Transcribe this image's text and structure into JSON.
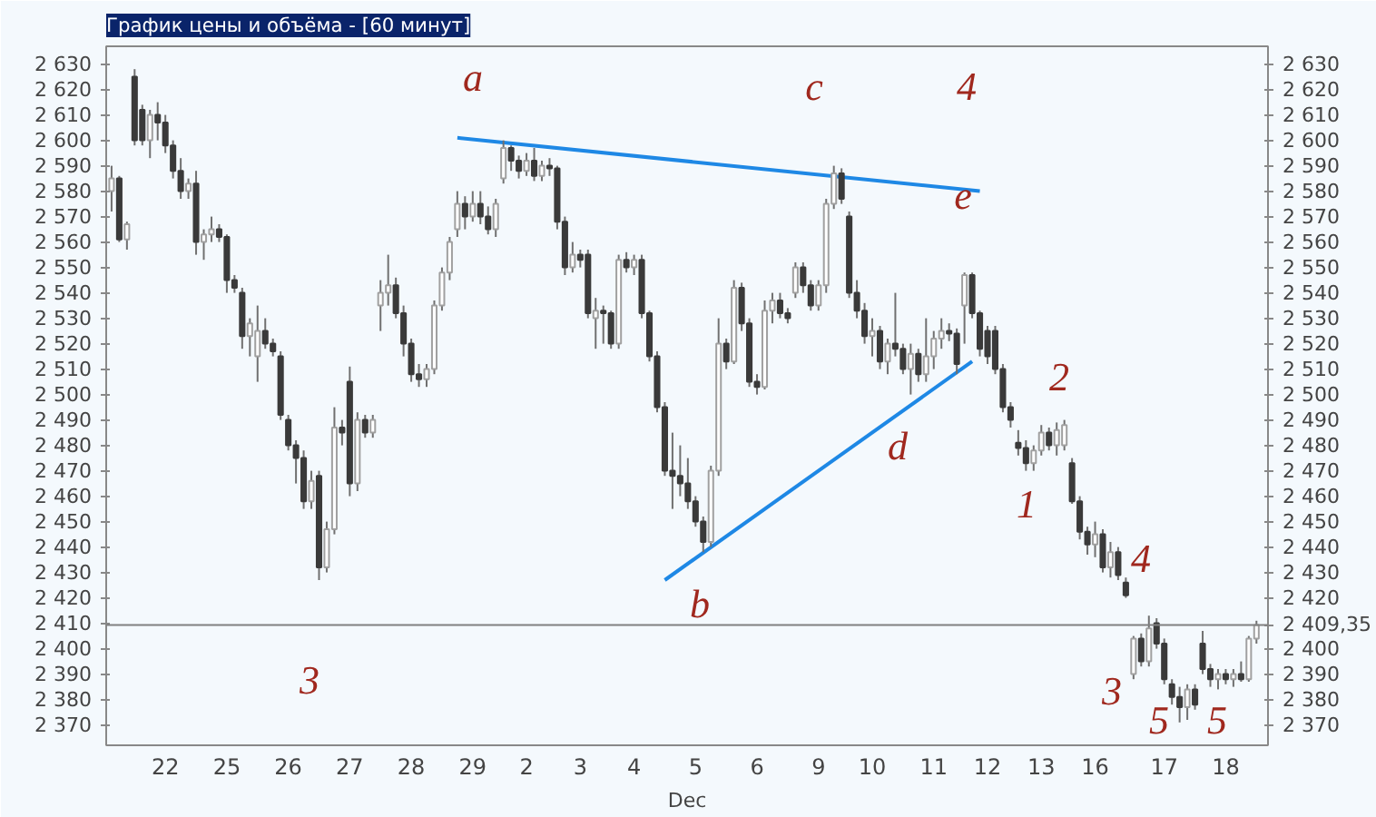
{
  "chart_data": {
    "type": "candlestick",
    "title": "График цены и объёма - [60 минут]",
    "xlabel": "Dec",
    "categories": [
      null,
      null,
      null,
      null,
      null,
      null,
      null,
      "22",
      null,
      null,
      null,
      null,
      null,
      null,
      null,
      "25",
      null,
      null,
      null,
      null,
      null,
      null,
      null,
      "26",
      null,
      null,
      null,
      null,
      null,
      null,
      null,
      "27",
      null,
      null,
      null,
      null,
      null,
      null,
      null,
      "28",
      null,
      null,
      null,
      null,
      null,
      null,
      null,
      "29",
      null,
      null,
      null,
      null,
      null,
      null,
      "2",
      null,
      null,
      null,
      null,
      null,
      null,
      "3",
      null,
      null,
      null,
      null,
      null,
      null,
      "4",
      null,
      null,
      null,
      null,
      null,
      null,
      null,
      "5",
      null,
      null,
      null,
      null,
      null,
      null,
      null,
      "6",
      null,
      null,
      null,
      null,
      null,
      null,
      null,
      "9",
      null,
      null,
      null,
      null,
      null,
      null,
      "10",
      null,
      null,
      null,
      null,
      null,
      null,
      null,
      "11",
      null,
      null,
      null,
      null,
      null,
      null,
      "12",
      null,
      null,
      null,
      null,
      null,
      null,
      "13",
      null,
      null,
      null,
      null,
      null,
      null,
      "16",
      null,
      null,
      null,
      null,
      null,
      null,
      null,
      null,
      "17",
      null,
      null,
      null,
      null,
      null,
      null,
      null,
      "18",
      null,
      null,
      null,
      null
    ],
    "ohlc": [
      [
        2580,
        2590,
        2572,
        2585
      ],
      [
        2585,
        2586,
        2560,
        2561
      ],
      [
        2561,
        2568,
        2557,
        2567
      ],
      [
        2625,
        2628,
        2598,
        2600
      ],
      [
        2612,
        2614,
        2598,
        2600
      ],
      [
        2600,
        2612,
        2593,
        2610
      ],
      [
        2610,
        2615,
        2600,
        2607
      ],
      [
        2607,
        2610,
        2595,
        2598
      ],
      [
        2598,
        2600,
        2585,
        2588
      ],
      [
        2588,
        2593,
        2577,
        2580
      ],
      [
        2580,
        2585,
        2577,
        2583
      ],
      [
        2583,
        2588,
        2555,
        2560
      ],
      [
        2560,
        2565,
        2553,
        2563
      ],
      [
        2563,
        2570,
        2560,
        2565
      ],
      [
        2565,
        2567,
        2560,
        2562
      ],
      [
        2562,
        2563,
        2540,
        2545
      ],
      [
        2545,
        2547,
        2540,
        2542
      ],
      [
        2540,
        2542,
        2518,
        2523
      ],
      [
        2523,
        2530,
        2515,
        2528
      ],
      [
        2515,
        2535,
        2505,
        2525
      ],
      [
        2525,
        2530,
        2518,
        2520
      ],
      [
        2520,
        2522,
        2515,
        2517
      ],
      [
        2515,
        2517,
        2490,
        2492
      ],
      [
        2490,
        2492,
        2478,
        2480
      ],
      [
        2480,
        2482,
        2465,
        2475
      ],
      [
        2475,
        2478,
        2455,
        2458
      ],
      [
        2458,
        2470,
        2455,
        2466
      ],
      [
        2468,
        2470,
        2427,
        2432
      ],
      [
        2432,
        2450,
        2430,
        2447
      ],
      [
        2447,
        2495,
        2445,
        2487
      ],
      [
        2487,
        2490,
        2480,
        2485
      ],
      [
        2505,
        2511,
        2460,
        2465
      ],
      [
        2465,
        2493,
        2462,
        2490
      ],
      [
        2490,
        2492,
        2483,
        2485
      ],
      [
        2485,
        2492,
        2483,
        2490
      ],
      [
        2535,
        2545,
        2525,
        2540
      ],
      [
        2540,
        2555,
        2535,
        2543
      ],
      [
        2543,
        2546,
        2530,
        2532
      ],
      [
        2532,
        2535,
        2515,
        2520
      ],
      [
        2520,
        2522,
        2505,
        2508
      ],
      [
        2508,
        2512,
        2503,
        2506
      ],
      [
        2506,
        2512,
        2503,
        2510
      ],
      [
        2510,
        2537,
        2508,
        2535
      ],
      [
        2535,
        2550,
        2533,
        2548
      ],
      [
        2548,
        2562,
        2545,
        2560
      ],
      [
        2565,
        2580,
        2562,
        2575
      ],
      [
        2575,
        2578,
        2565,
        2570
      ],
      [
        2570,
        2580,
        2568,
        2575
      ],
      [
        2575,
        2580,
        2567,
        2570
      ],
      [
        2570,
        2574,
        2563,
        2565
      ],
      [
        2565,
        2577,
        2562,
        2575
      ],
      [
        2585,
        2600,
        2583,
        2597
      ],
      [
        2597,
        2598,
        2588,
        2592
      ],
      [
        2592,
        2594,
        2585,
        2588
      ],
      [
        2588,
        2595,
        2586,
        2592
      ],
      [
        2592,
        2597,
        2584,
        2586
      ],
      [
        2586,
        2592,
        2584,
        2590
      ],
      [
        2590,
        2593,
        2586,
        2589
      ],
      [
        2589,
        2590,
        2565,
        2568
      ],
      [
        2568,
        2570,
        2547,
        2550
      ],
      [
        2550,
        2560,
        2548,
        2555
      ],
      [
        2555,
        2557,
        2550,
        2553
      ],
      [
        2555,
        2557,
        2530,
        2532
      ],
      [
        2530,
        2538,
        2518,
        2533
      ],
      [
        2533,
        2535,
        2520,
        2532
      ],
      [
        2532,
        2533,
        2518,
        2520
      ],
      [
        2520,
        2555,
        2518,
        2553
      ],
      [
        2553,
        2556,
        2548,
        2550
      ],
      [
        2550,
        2555,
        2547,
        2553
      ],
      [
        2553,
        2555,
        2530,
        2532
      ],
      [
        2532,
        2533,
        2513,
        2515
      ],
      [
        2515,
        2517,
        2493,
        2495
      ],
      [
        2495,
        2497,
        2468,
        2470
      ],
      [
        2470,
        2485,
        2455,
        2468
      ],
      [
        2468,
        2480,
        2460,
        2465
      ],
      [
        2465,
        2475,
        2455,
        2458
      ],
      [
        2458,
        2460,
        2448,
        2450
      ],
      [
        2450,
        2452,
        2438,
        2442
      ],
      [
        2442,
        2472,
        2440,
        2470
      ],
      [
        2470,
        2530,
        2468,
        2520
      ],
      [
        2520,
        2522,
        2510,
        2513
      ],
      [
        2513,
        2545,
        2512,
        2542
      ],
      [
        2542,
        2544,
        2525,
        2528
      ],
      [
        2528,
        2530,
        2503,
        2505
      ],
      [
        2505,
        2508,
        2500,
        2503
      ],
      [
        2503,
        2537,
        2502,
        2533
      ],
      [
        2533,
        2540,
        2528,
        2537
      ],
      [
        2537,
        2540,
        2530,
        2532
      ],
      [
        2532,
        2534,
        2528,
        2530
      ],
      [
        2540,
        2552,
        2538,
        2550
      ],
      [
        2550,
        2552,
        2540,
        2543
      ],
      [
        2543,
        2545,
        2533,
        2535
      ],
      [
        2535,
        2545,
        2533,
        2543
      ],
      [
        2543,
        2577,
        2540,
        2575
      ],
      [
        2575,
        2590,
        2573,
        2587
      ],
      [
        2587,
        2589,
        2575,
        2577
      ],
      [
        2570,
        2572,
        2538,
        2540
      ],
      [
        2540,
        2545,
        2530,
        2533
      ],
      [
        2533,
        2536,
        2520,
        2523
      ],
      [
        2523,
        2530,
        2515,
        2525
      ],
      [
        2525,
        2527,
        2510,
        2513
      ],
      [
        2513,
        2522,
        2508,
        2520
      ],
      [
        2520,
        2540,
        2515,
        2518
      ],
      [
        2518,
        2520,
        2508,
        2510
      ],
      [
        2510,
        2520,
        2500,
        2516
      ],
      [
        2516,
        2518,
        2505,
        2508
      ],
      [
        2508,
        2530,
        2505,
        2515
      ],
      [
        2515,
        2525,
        2510,
        2522
      ],
      [
        2522,
        2530,
        2518,
        2525
      ],
      [
        2525,
        2528,
        2521,
        2524
      ],
      [
        2524,
        2526,
        2508,
        2512
      ],
      [
        2535,
        2548,
        2520,
        2547
      ],
      [
        2547,
        2548,
        2530,
        2532
      ],
      [
        2532,
        2533,
        2515,
        2518
      ],
      [
        2525,
        2527,
        2512,
        2515
      ],
      [
        2525,
        2527,
        2508,
        2510
      ],
      [
        2510,
        2512,
        2493,
        2495
      ],
      [
        2495,
        2497,
        2487,
        2490
      ],
      [
        2481,
        2486,
        2476,
        2479
      ],
      [
        2479,
        2482,
        2470,
        2473
      ],
      [
        2473,
        2480,
        2470,
        2478
      ],
      [
        2478,
        2488,
        2476,
        2485
      ],
      [
        2485,
        2487,
        2478,
        2480
      ],
      [
        2480,
        2489,
        2476,
        2486
      ],
      [
        2480,
        2490,
        2478,
        2488
      ],
      [
        2473,
        2475,
        2457,
        2458
      ],
      [
        2458,
        2460,
        2443,
        2446
      ],
      [
        2446,
        2448,
        2437,
        2441
      ],
      [
        2441,
        2450,
        2436,
        2445
      ],
      [
        2445,
        2447,
        2430,
        2432
      ],
      [
        2432,
        2442,
        2428,
        2438
      ],
      [
        2438,
        2440,
        2427,
        2429
      ],
      [
        2426,
        2428,
        2420,
        2421
      ],
      [
        2390,
        2405,
        2388,
        2404
      ],
      [
        2404,
        2406,
        2393,
        2395
      ],
      [
        2395,
        2413,
        2393,
        2408
      ],
      [
        2410,
        2412,
        2400,
        2402
      ],
      [
        2402,
        2404,
        2386,
        2388
      ],
      [
        2386,
        2388,
        2378,
        2381
      ],
      [
        2381,
        2385,
        2371,
        2377
      ],
      [
        2377,
        2386,
        2372,
        2384
      ],
      [
        2384,
        2386,
        2376,
        2378
      ],
      [
        2402,
        2407,
        2390,
        2392
      ],
      [
        2392,
        2394,
        2385,
        2388
      ],
      [
        2388,
        2392,
        2384,
        2390
      ],
      [
        2390,
        2392,
        2386,
        2388
      ],
      [
        2388,
        2392,
        2385,
        2390
      ],
      [
        2390,
        2395,
        2387,
        2388
      ],
      [
        2388,
        2405,
        2387,
        2404
      ],
      [
        2404,
        2411,
        2402,
        2409.35
      ]
    ],
    "series": [
      {
        "type": "line",
        "color": "#1e88e5",
        "values": [
          null,
          null,
          null,
          null,
          null,
          null,
          null,
          null,
          null,
          null,
          null,
          null,
          null,
          null,
          null,
          null,
          null,
          null,
          null,
          null,
          null,
          null,
          null,
          null,
          null,
          null,
          null,
          null,
          null,
          null,
          null,
          null,
          null,
          null,
          null,
          null,
          null,
          null,
          null,
          null,
          null,
          null,
          null,
          null,
          null,
          2601,
          null,
          null,
          null,
          null,
          null,
          null,
          null,
          null,
          null,
          null,
          null,
          null,
          null,
          null,
          null,
          null,
          null,
          null,
          null,
          null,
          null,
          null,
          null,
          null,
          null,
          null,
          null,
          null,
          null,
          null,
          null,
          null,
          null,
          null,
          null,
          null,
          null,
          null,
          null,
          null,
          null,
          null,
          null,
          null,
          null,
          null,
          null,
          null,
          null,
          null,
          null,
          null,
          null,
          null,
          null,
          null,
          null,
          null,
          null,
          null,
          null,
          null,
          null,
          null,
          null,
          null,
          null,
          2580,
          null,
          null,
          null,
          null,
          null,
          null,
          null,
          null,
          null,
          null,
          null,
          null,
          null,
          null,
          null,
          null,
          null,
          null,
          null,
          null,
          null,
          null,
          null,
          null,
          null,
          null,
          null,
          null,
          null,
          null,
          null,
          null,
          null,
          null,
          null,
          null
        ]
      },
      {
        "type": "line",
        "color": "#1e88e5",
        "values": [
          null,
          null,
          null,
          null,
          null,
          null,
          null,
          null,
          null,
          null,
          null,
          null,
          null,
          null,
          null,
          null,
          null,
          null,
          null,
          null,
          null,
          null,
          null,
          null,
          null,
          null,
          null,
          null,
          null,
          null,
          null,
          null,
          null,
          null,
          null,
          null,
          null,
          null,
          null,
          null,
          null,
          null,
          null,
          null,
          null,
          null,
          null,
          null,
          null,
          null,
          null,
          null,
          null,
          null,
          null,
          null,
          null,
          null,
          null,
          null,
          null,
          null,
          null,
          null,
          null,
          null,
          null,
          null,
          null,
          null,
          null,
          null,
          2427,
          null,
          null,
          null,
          null,
          null,
          null,
          null,
          null,
          null,
          null,
          null,
          null,
          null,
          null,
          null,
          null,
          null,
          null,
          null,
          null,
          null,
          null,
          null,
          null,
          null,
          null,
          null,
          null,
          null,
          null,
          null,
          null,
          null,
          null,
          null,
          null,
          null,
          null,
          null,
          2513,
          null,
          null,
          null,
          null,
          null,
          null,
          null,
          null,
          null,
          null,
          null,
          null,
          null,
          null,
          null,
          null,
          null,
          null,
          null,
          null,
          null,
          null,
          null,
          null,
          null,
          null,
          null,
          null,
          null,
          null,
          null,
          null,
          null,
          null,
          null,
          null,
          null
        ]
      }
    ],
    "ylim": [
      2362,
      2637
    ],
    "yticks": [
      {
        "value": 2370,
        "label": "2 370"
      },
      {
        "value": 2380,
        "label": "2 380"
      },
      {
        "value": 2390,
        "label": "2 390"
      },
      {
        "value": 2400,
        "label": "2 400"
      },
      {
        "value": 2410,
        "label": "2 410"
      },
      {
        "value": 2420,
        "label": "2 420"
      },
      {
        "value": 2430,
        "label": "2 430"
      },
      {
        "value": 2440,
        "label": "2 440"
      },
      {
        "value": 2450,
        "label": "2 450"
      },
      {
        "value": 2460,
        "label": "2 460"
      },
      {
        "value": 2470,
        "label": "2 470"
      },
      {
        "value": 2480,
        "label": "2 480"
      },
      {
        "value": 2490,
        "label": "2 490"
      },
      {
        "value": 2500,
        "label": "2 500"
      },
      {
        "value": 2510,
        "label": "2 510"
      },
      {
        "value": 2520,
        "label": "2 520"
      },
      {
        "value": 2530,
        "label": "2 530"
      },
      {
        "value": 2540,
        "label": "2 540"
      },
      {
        "value": 2550,
        "label": "2 550"
      },
      {
        "value": 2560,
        "label": "2 560"
      },
      {
        "value": 2570,
        "label": "2 570"
      },
      {
        "value": 2580,
        "label": "2 580"
      },
      {
        "value": 2590,
        "label": "2 590"
      },
      {
        "value": 2600,
        "label": "2 600"
      },
      {
        "value": 2610,
        "label": "2 610"
      },
      {
        "value": 2620,
        "label": "2 620"
      },
      {
        "value": 2630,
        "label": "2 630"
      }
    ],
    "y2lim": [
      2362,
      2637
    ],
    "y2ticks": [
      {
        "value": 2370,
        "label": "2 370"
      },
      {
        "value": 2380,
        "label": "2 380"
      },
      {
        "value": 2390,
        "label": "2 390"
      },
      {
        "value": 2400,
        "label": "2 400"
      },
      {
        "value": 2420,
        "label": "2 420"
      },
      {
        "value": 2430,
        "label": "2 430"
      },
      {
        "value": 2440,
        "label": "2 440"
      },
      {
        "value": 2450,
        "label": "2 450"
      },
      {
        "value": 2460,
        "label": "2 460"
      },
      {
        "value": 2470,
        "label": "2 470"
      },
      {
        "value": 2480,
        "label": "2 480"
      },
      {
        "value": 2490,
        "label": "2 490"
      },
      {
        "value": 2500,
        "label": "2 500"
      },
      {
        "value": 2510,
        "label": "2 510"
      },
      {
        "value": 2520,
        "label": "2 520"
      },
      {
        "value": 2530,
        "label": "2 530"
      },
      {
        "value": 2540,
        "label": "2 540"
      },
      {
        "value": 2550,
        "label": "2 550"
      },
      {
        "value": 2560,
        "label": "2 560"
      },
      {
        "value": 2570,
        "label": "2 570"
      },
      {
        "value": 2580,
        "label": "2 580"
      },
      {
        "value": 2590,
        "label": "2 590"
      },
      {
        "value": 2600,
        "label": "2 600"
      },
      {
        "value": 2610,
        "label": "2 610"
      },
      {
        "value": 2620,
        "label": "2 620"
      },
      {
        "value": 2630,
        "label": "2 630"
      }
    ],
    "ref_lines": [
      {
        "axis": "y2",
        "value": 2409.35,
        "label": "2 409,35",
        "color": "#808080"
      }
    ],
    "annotations": [
      "a",
      "c",
      "4",
      "e",
      "d",
      "b",
      "3",
      "2",
      "1",
      "4",
      "3",
      "5",
      "5"
    ],
    "grid": false
  }
}
